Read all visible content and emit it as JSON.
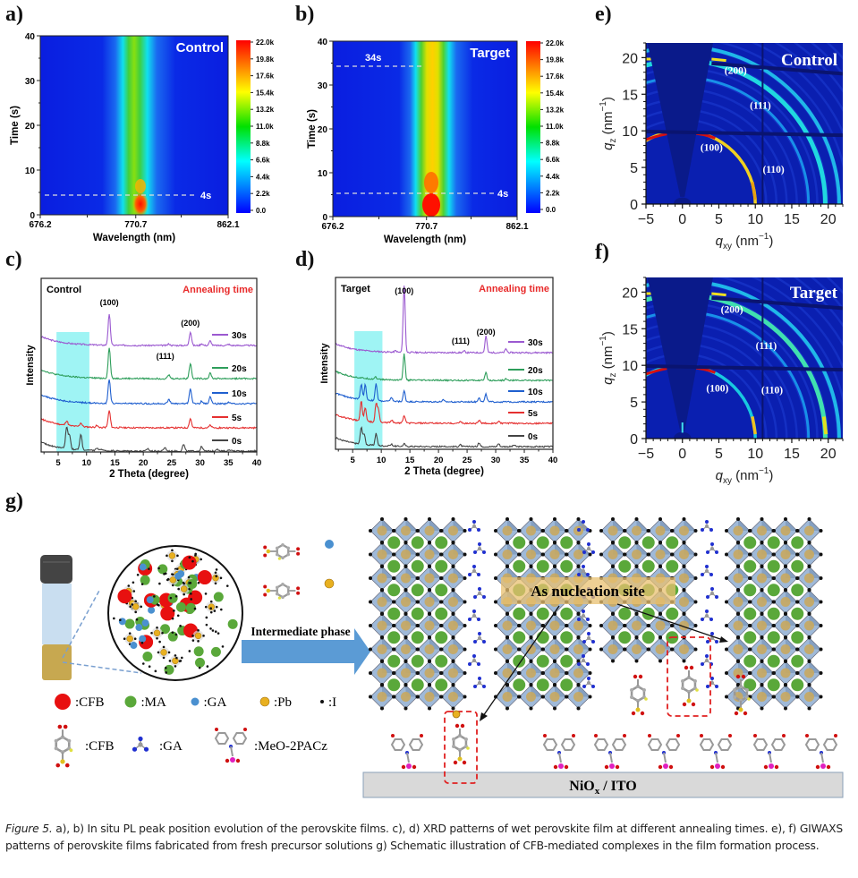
{
  "panels": {
    "a": "a)",
    "b": "b)",
    "c": "c)",
    "d": "d)",
    "e": "e)",
    "f": "f)",
    "g": "g)"
  },
  "chart_data": [
    {
      "id": "a",
      "type": "heatmap",
      "title": "Control",
      "xlabel": "Wavelength (nm)",
      "ylabel": "Time (s)",
      "xticks": [
        "676.2",
        "770.7",
        "862.1"
      ],
      "xlim": [
        676.2,
        862.1
      ],
      "yticks": [
        "0",
        "10",
        "20",
        "30",
        "40"
      ],
      "ylim": [
        0,
        40
      ],
      "peak_wavelength": 770.7,
      "annotations": [
        {
          "text": "4s",
          "time": 4.5
        }
      ],
      "colorbar": {
        "ticks": [
          "22.0k",
          "19.8k",
          "17.6k",
          "15.4k",
          "13.2k",
          "11.0k",
          "8.8k",
          "6.6k",
          "4.4k",
          "2.2k",
          "0.0"
        ],
        "range": [
          0,
          22000
        ]
      }
    },
    {
      "id": "b",
      "type": "heatmap",
      "title": "Target",
      "xlabel": "Wavelength (nm)",
      "ylabel": "Time (s)",
      "xticks": [
        "676.2",
        "770.7",
        "862.1"
      ],
      "xlim": [
        676.2,
        862.1
      ],
      "yticks": [
        "0",
        "10",
        "20",
        "30",
        "40"
      ],
      "ylim": [
        0,
        40
      ],
      "peak_wavelength": 770.7,
      "annotations": [
        {
          "text": "34s",
          "time": 34.2
        },
        {
          "text": "4s",
          "time": 4.5
        }
      ],
      "colorbar": {
        "ticks": [
          "22.0k",
          "19.8k",
          "17.6k",
          "15.4k",
          "13.2k",
          "11.0k",
          "8.8k",
          "6.6k",
          "4.4k",
          "2.2k",
          "0.0"
        ],
        "range": [
          0,
          22000
        ]
      }
    },
    {
      "id": "c",
      "type": "line",
      "title": "Control",
      "subtitle": "Annealing time",
      "xlabel": "2 Theta (degree)",
      "ylabel": "Intensity",
      "xlim": [
        2,
        40
      ],
      "xticks": [
        "5",
        "10",
        "15",
        "20",
        "25",
        "30",
        "35",
        "40"
      ],
      "highlight_range": [
        4.7,
        10.5
      ],
      "peak_labels": [
        {
          "text": "(100)",
          "x": 14.0
        },
        {
          "text": "(111)",
          "x": 24.5
        },
        {
          "text": "(200)",
          "x": 28.3
        }
      ],
      "series": [
        {
          "name": "30s",
          "color": "#9b59d0",
          "peaks": [
            [
              14.0,
              1.0
            ],
            [
              24.5,
              0.05
            ],
            [
              28.3,
              0.45
            ],
            [
              30.3,
              0.06
            ],
            [
              31.8,
              0.15
            ],
            [
              35.0,
              0.04
            ]
          ]
        },
        {
          "name": "20s",
          "color": "#2e9e5b",
          "peaks": [
            [
              14.0,
              1.0
            ],
            [
              24.5,
              0.12
            ],
            [
              28.3,
              0.5
            ],
            [
              31.8,
              0.18
            ]
          ]
        },
        {
          "name": "10s",
          "color": "#1f5fcf",
          "peaks": [
            [
              14.0,
              0.8
            ],
            [
              24.5,
              0.15
            ],
            [
              28.3,
              0.5
            ],
            [
              30.3,
              0.08
            ],
            [
              31.8,
              0.22
            ],
            [
              35.0,
              0.05
            ]
          ]
        },
        {
          "name": "5s",
          "color": "#e53030",
          "peaks": [
            [
              6.5,
              0.15
            ],
            [
              9.0,
              0.12
            ],
            [
              11.8,
              0.05
            ],
            [
              14.0,
              0.55
            ],
            [
              28.3,
              0.3
            ],
            [
              31.8,
              0.08
            ]
          ]
        },
        {
          "name": "0s",
          "color": "#444444",
          "peaks": [
            [
              6.5,
              0.7
            ],
            [
              7.0,
              0.45
            ],
            [
              9.0,
              0.5
            ],
            [
              11.8,
              0.08
            ],
            [
              12.7,
              0.05
            ],
            [
              20.8,
              0.08
            ],
            [
              23.8,
              0.12
            ],
            [
              27.1,
              0.22
            ],
            [
              30.3,
              0.15
            ],
            [
              33.0,
              0.08
            ],
            [
              35.2,
              0.05
            ]
          ]
        }
      ]
    },
    {
      "id": "d",
      "type": "line",
      "title": "Target",
      "subtitle": "Annealing time",
      "xlabel": "2 Theta (degree)",
      "ylabel": "Intensity",
      "xlim": [
        2,
        40
      ],
      "xticks": [
        "5",
        "10",
        "15",
        "20",
        "25",
        "30",
        "35",
        "40"
      ],
      "highlight_range": [
        5.3,
        10.2
      ],
      "peak_labels": [
        {
          "text": "(100)",
          "x": 14.0
        },
        {
          "text": "(111)",
          "x": 24.5
        },
        {
          "text": "(200)",
          "x": 28.3
        }
      ],
      "series": [
        {
          "name": "30s",
          "color": "#9b59d0",
          "peaks": [
            [
              12.5,
              0.05
            ],
            [
              14.0,
              2.2
            ],
            [
              24.5,
              0.05
            ],
            [
              28.3,
              0.55
            ],
            [
              31.8,
              0.12
            ]
          ]
        },
        {
          "name": "20s",
          "color": "#2e9e5b",
          "peaks": [
            [
              9.0,
              0.08
            ],
            [
              14.0,
              0.85
            ],
            [
              28.3,
              0.25
            ],
            [
              31.8,
              0.05
            ]
          ]
        },
        {
          "name": "10s",
          "color": "#1f5fcf",
          "peaks": [
            [
              6.5,
              0.5
            ],
            [
              7.2,
              0.5
            ],
            [
              9.1,
              0.55
            ],
            [
              11.8,
              0.12
            ],
            [
              14.0,
              0.35
            ],
            [
              20.8,
              0.06
            ],
            [
              27.1,
              0.15
            ],
            [
              28.3,
              0.25
            ]
          ]
        },
        {
          "name": "5s",
          "color": "#e53030",
          "peaks": [
            [
              6.5,
              0.65
            ],
            [
              7.2,
              0.45
            ],
            [
              9.1,
              0.6
            ],
            [
              9.5,
              0.4
            ],
            [
              11.8,
              0.1
            ],
            [
              14.0,
              0.25
            ],
            [
              23.8,
              0.06
            ],
            [
              27.1,
              0.1
            ],
            [
              30.5,
              0.06
            ]
          ]
        },
        {
          "name": "0s",
          "color": "#444444",
          "peaks": [
            [
              6.5,
              0.55
            ],
            [
              7.0,
              0.35
            ],
            [
              9.1,
              0.4
            ],
            [
              11.8,
              0.06
            ],
            [
              14.0,
              0.08
            ],
            [
              23.8,
              0.06
            ],
            [
              27.1,
              0.12
            ],
            [
              30.5,
              0.1
            ],
            [
              33.2,
              0.05
            ]
          ]
        }
      ]
    },
    {
      "id": "e",
      "type": "heatmap",
      "title": "Control",
      "xlabel": "q_xy (nm^-1)",
      "ylabel": "q_z (nm^-1)",
      "xlim": [
        -5,
        22
      ],
      "ylim": [
        0,
        22
      ],
      "xticks": [
        "−5",
        "0",
        "5",
        "10",
        "15",
        "20"
      ],
      "yticks": [
        "0",
        "5",
        "10",
        "15",
        "20"
      ],
      "rings": [
        {
          "label": "(100)",
          "q": 10
        },
        {
          "label": "(110)",
          "q": 14
        },
        {
          "label": "(111)",
          "q": 17.3
        },
        {
          "label": "(200)",
          "q": 20
        }
      ]
    },
    {
      "id": "f",
      "type": "heatmap",
      "title": "Target",
      "xlabel": "q_xy (nm^-1)",
      "ylabel": "q_z (nm^-1)",
      "xlim": [
        -5,
        22
      ],
      "ylim": [
        0,
        22
      ],
      "xticks": [
        "−5",
        "0",
        "5",
        "10",
        "15",
        "20"
      ],
      "yticks": [
        "0",
        "5",
        "10",
        "15",
        "20"
      ],
      "rings": [
        {
          "label": "(100)",
          "q": 10
        },
        {
          "label": "(110)",
          "q": 14
        },
        {
          "label": "(111)",
          "q": 17.3
        },
        {
          "label": "(200)",
          "q": 20
        }
      ]
    }
  ],
  "axis_labels": {
    "q_letter": "q",
    "xy_sub": "xy",
    "z_sub": "z",
    "unit_open": "(nm",
    "unit_exp": "−1",
    "unit_close": ")"
  },
  "schematic": {
    "arrow_label": "Intermediate phase",
    "nucleation_label": "As nucleation site",
    "substrate_label_main": "NiO",
    "substrate_label_sub": "x",
    "substrate_label_rest": " / ITO",
    "legend_dots": [
      {
        "label": ":CFB",
        "color": "#e81010"
      },
      {
        "label": ":MA",
        "color": "#5aa83a"
      },
      {
        "label": ":GA",
        "color": "#4a90d0"
      },
      {
        "label": ":Pb",
        "color": "#e8b020"
      },
      {
        "label": ":I",
        "color": "#111111"
      }
    ],
    "legend_molecules": [
      ":CFB",
      ":GA",
      ":MeO-2PACz"
    ]
  },
  "caption": {
    "figure_label": "Figure 5.",
    "text": " a), b) In situ PL peak position evolution of the perovskite films. c), d) XRD patterns of wet perovskite film at different annealing times. e), f) GIWAXS patterns of perovskite films fabricated from fresh precursor solutions g) Schematic illustration of CFB-mediated complexes in the film formation process."
  }
}
